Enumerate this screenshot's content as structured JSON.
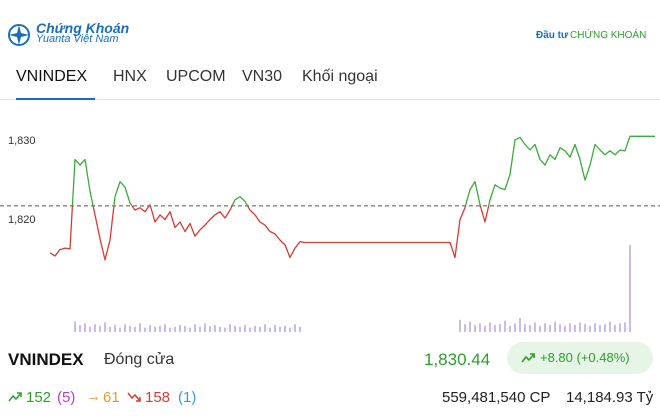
{
  "header": {
    "brand_line1": "Chứng Khoán",
    "brand_line2": "Yuanta Việt Nam",
    "partner_prefix": "Đầu tư",
    "partner_name": "CHỨNG KHOÁN"
  },
  "tabs": [
    "VNINDEX",
    "HNX",
    "UPCOM",
    "VN30",
    "Khối ngoại"
  ],
  "chart_data": {
    "type": "line",
    "series": [
      {
        "name": "VNINDEX",
        "color_up": "#3bab3b",
        "color_down": "#d93a32",
        "values": [
          1815.7,
          1815.3,
          1816.1,
          1816.3,
          1816.2,
          1827.5,
          1826.8,
          1827.5,
          1823.5,
          1820.5,
          1817.5,
          1814.8,
          1817.3,
          1822.8,
          1824.7,
          1824.0,
          1822.0,
          1821.1,
          1821.4,
          1820.9,
          1821.8,
          1819.6,
          1820.5,
          1819.9,
          1820.9,
          1818.9,
          1819.6,
          1818.4,
          1819.4,
          1817.8,
          1818.6,
          1819.2,
          1819.9,
          1820.5,
          1820.9,
          1820.1,
          1821.1,
          1822.4,
          1822.8,
          1822.2,
          1821.1,
          1820.5,
          1819.6,
          1819.2,
          1818.4,
          1818.1,
          1817.3,
          1816.7,
          1815.1,
          1816.3,
          1817.1,
          1817.0,
          1817.0,
          1817.0,
          1817.0,
          1817.0,
          1817.0,
          1817.0,
          1817.0,
          1817.0,
          1817.0,
          1817.0,
          1817.0,
          1817.0,
          1817.0,
          1817.0,
          1817.0,
          1817.0,
          1817.0,
          1817.0,
          1817.0,
          1817.0,
          1817.0,
          1817.0,
          1817.0,
          1817.0,
          1817.0,
          1817.0,
          1817.0,
          1817.0,
          1817.0,
          1815.1,
          1819.9,
          1821.4,
          1823.7,
          1824.7,
          1821.8,
          1819.6,
          1822.4,
          1824.3,
          1823.9,
          1823.7,
          1825.6,
          1830.0,
          1830.3,
          1829.4,
          1828.7,
          1829.4,
          1827.5,
          1826.8,
          1828.1,
          1827.5,
          1829.0,
          1828.6,
          1827.8,
          1829.4,
          1827.5,
          1824.9,
          1826.8,
          1829.4,
          1828.7,
          1828.1,
          1828.6,
          1828.1,
          1828.7,
          1828.6,
          1830.44,
          1830.44,
          1830.44,
          1830.44,
          1830.44,
          1830.44
        ]
      }
    ],
    "reference": 1821.64,
    "ylim": [
      1805.3,
      1832.5
    ],
    "yticks": [
      {
        "value": 1820,
        "label": "1,820"
      },
      {
        "value": 1830,
        "label": "1,830"
      }
    ],
    "volume": {
      "color": "#cbbbe9",
      "ylim": [
        0,
        100
      ],
      "values": [
        0,
        0,
        0,
        0,
        0,
        12,
        8,
        10,
        6,
        9,
        7,
        11,
        6,
        8,
        5,
        9,
        7,
        6,
        10,
        5,
        8,
        6,
        7,
        9,
        5,
        6,
        8,
        7,
        5,
        9,
        6,
        10,
        7,
        8,
        6,
        5,
        9,
        7,
        6,
        8,
        5,
        7,
        6,
        9,
        5,
        8,
        6,
        7,
        5,
        9,
        6,
        0,
        0,
        0,
        0,
        0,
        0,
        0,
        0,
        0,
        0,
        0,
        0,
        0,
        0,
        0,
        0,
        0,
        0,
        0,
        0,
        0,
        0,
        0,
        0,
        0,
        0,
        0,
        0,
        0,
        0,
        0,
        14,
        9,
        12,
        8,
        10,
        7,
        11,
        8,
        9,
        13,
        7,
        10,
        16,
        9,
        8,
        11,
        7,
        10,
        8,
        12,
        9,
        7,
        10,
        8,
        11,
        9,
        7,
        10,
        8,
        9,
        12,
        8,
        10,
        11,
        100,
        0,
        0,
        0,
        0,
        0
      ]
    }
  },
  "summary": {
    "name": "VNINDEX",
    "status": "Đóng cửa",
    "close": "1,830.44",
    "change": "+8.80 (+0.48%)"
  },
  "breadth": {
    "up": "152",
    "ceiling": "(5)",
    "unchanged": "61",
    "down": "158",
    "floor": "(1)",
    "volume": "559,481,540 CP",
    "value": "14,184.93 Tỷ"
  }
}
